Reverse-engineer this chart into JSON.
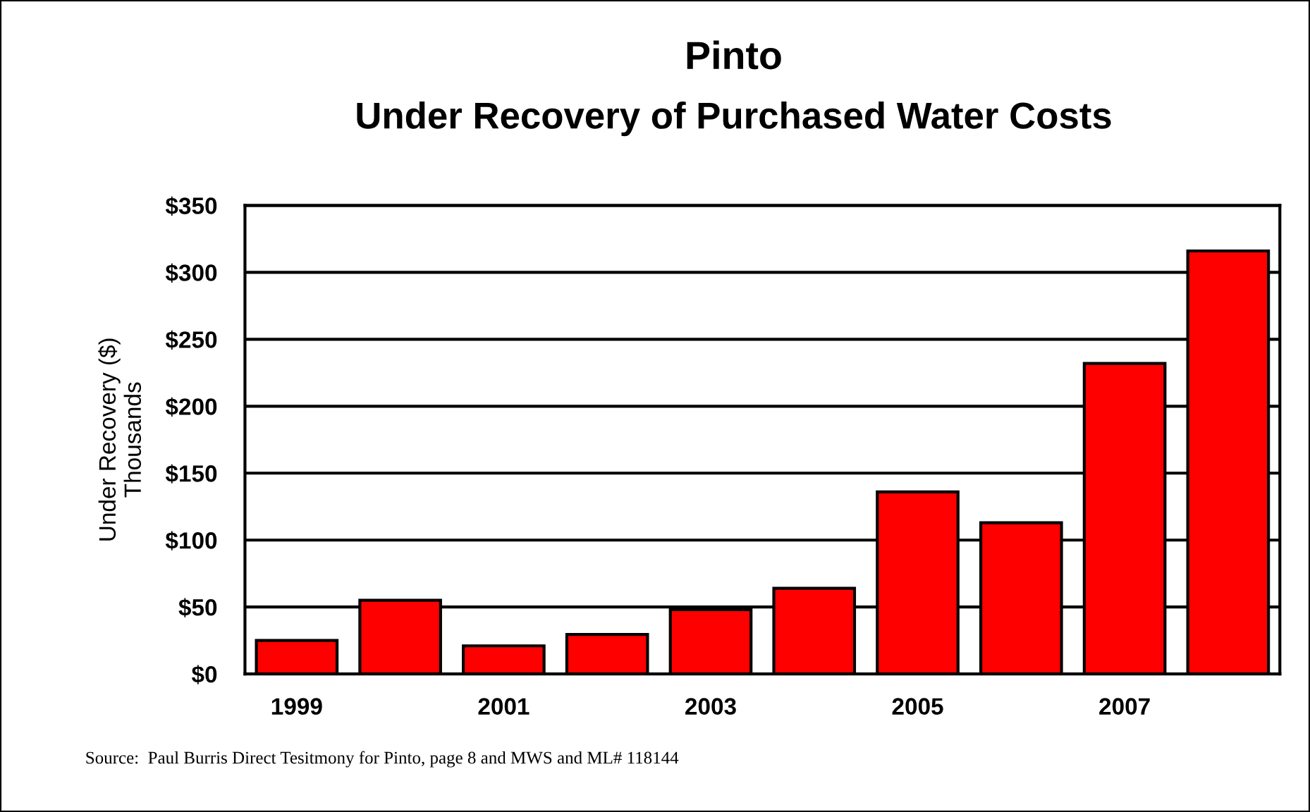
{
  "chart_data": {
    "type": "bar",
    "title": "Pinto\nUnder Recovery of Purchased Water Costs",
    "ylabel": "Under Recovery ($)\nThousands",
    "categories": [
      "1999",
      null,
      "2001",
      null,
      "2003",
      null,
      "2005",
      null,
      "2007",
      null
    ],
    "values": [
      25,
      55,
      21,
      29.5,
      48,
      64,
      136,
      113,
      232,
      316
    ],
    "color": "#ff0000",
    "ylim": [
      0,
      350
    ],
    "yticks": [
      {
        "value": 0,
        "label": "$0"
      },
      {
        "value": 50,
        "label": "$50"
      },
      {
        "value": 100,
        "label": "$100"
      },
      {
        "value": 150,
        "label": "$150"
      },
      {
        "value": 200,
        "label": "$200"
      },
      {
        "value": 250,
        "label": "$250"
      },
      {
        "value": 300,
        "label": "$300"
      },
      {
        "value": 350,
        "label": "$350"
      }
    ],
    "grid": "y",
    "legend": false,
    "annotations": [
      "Source:  Paul Burris Direct Tesitmony for Pinto, page 8 and MWS and ML# 118144"
    ]
  }
}
